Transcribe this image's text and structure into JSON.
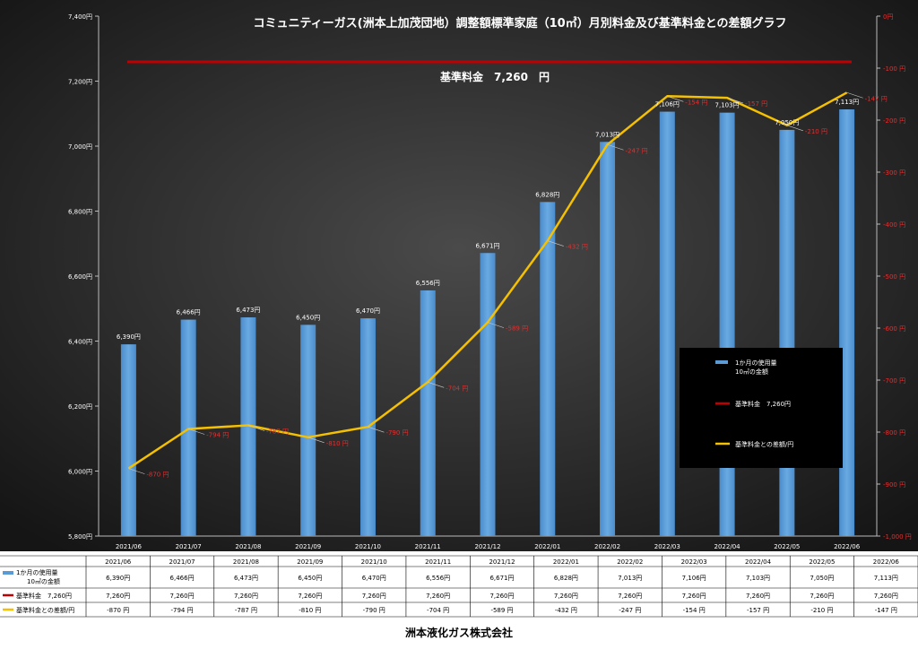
{
  "chart_data": {
    "type": "bar",
    "title": "コミュニティーガス(洲本上加茂団地）調整額標準家庭（10㎥）月別料金及び基準料金との差額グラフ",
    "baseline_label": "基準料金　7,260　円",
    "categories": [
      "2021/06",
      "2021/07",
      "2021/08",
      "2021/09",
      "2021/10",
      "2021/11",
      "2021/12",
      "2022/01",
      "2022/02",
      "2022/03",
      "2022/04",
      "2022/05",
      "2022/06"
    ],
    "series": [
      {
        "name": "1か月の使用量 10㎥の金額",
        "legend_lines": [
          "1か月の使用量",
          "10㎥の金額"
        ],
        "table_lines": [
          "1か月の使用量",
          "10㎥の金額"
        ],
        "type": "bar",
        "axis": "left",
        "color": "#5b9bd5",
        "values": [
          6390,
          6466,
          6473,
          6450,
          6470,
          6556,
          6671,
          6828,
          7013,
          7106,
          7103,
          7050,
          7113
        ],
        "labels": [
          "6,390円",
          "6,466円",
          "6,473円",
          "6,450円",
          "6,470円",
          "6,556円",
          "6,671円",
          "6,828円",
          "7,013円",
          "7,106円",
          "7,103円",
          "7,050円",
          "7,113円"
        ],
        "table_values": [
          "6,390円",
          "6,466円",
          "6,473円",
          "6,450円",
          "6,470円",
          "6,556円",
          "6,671円",
          "6,828円",
          "7,013円",
          "7,106円",
          "7,103円",
          "7,050円",
          "7,113円"
        ]
      },
      {
        "name": "基準料金　7,260円",
        "table_name": "基準料金　7,260円",
        "type": "line",
        "axis": "left",
        "color": "#c00000",
        "values": [
          7260,
          7260,
          7260,
          7260,
          7260,
          7260,
          7260,
          7260,
          7260,
          7260,
          7260,
          7260,
          7260
        ],
        "table_values": [
          "7,260円",
          "7,260円",
          "7,260円",
          "7,260円",
          "7,260円",
          "7,260円",
          "7,260円",
          "7,260円",
          "7,260円",
          "7,260円",
          "7,260円",
          "7,260円",
          "7,260円"
        ]
      },
      {
        "name": "基準料金との差額/円",
        "table_name": "基準料金との差額/円",
        "type": "line",
        "axis": "right",
        "color": "#f5c000",
        "values": [
          -870,
          -794,
          -787,
          -810,
          -790,
          -704,
          -589,
          -432,
          -247,
          -154,
          -157,
          -210,
          -147
        ],
        "labels": [
          "-870 円",
          "-794 円",
          "-787 円",
          "-810 円",
          "-790 円",
          "-704 円",
          "-589 円",
          "-432 円",
          "-247 円",
          "-154 円",
          "-157 円",
          "-210 円",
          "-147 円"
        ],
        "table_values": [
          "-870 円",
          "-794 円",
          "-787 円",
          "-810 円",
          "-790 円",
          "-704 円",
          "-589 円",
          "-432 円",
          "-247 円",
          "-154 円",
          "-157 円",
          "-210 円",
          "-147 円"
        ]
      }
    ],
    "y_left": {
      "ylim": [
        5800,
        7400
      ],
      "ticks": [
        5800,
        6000,
        6200,
        6400,
        6600,
        6800,
        7000,
        7200,
        7400
      ],
      "tick_labels": [
        "5,800円",
        "6,000円",
        "6,200円",
        "6,400円",
        "6,600円",
        "6,800円",
        "7,000円",
        "7,200円",
        "7,400円"
      ]
    },
    "y_right": {
      "ylim": [
        -1000,
        0
      ],
      "ticks": [
        0,
        -100,
        -200,
        -300,
        -400,
        -500,
        -600,
        -700,
        -800,
        -900,
        -1000
      ],
      "tick_labels": [
        "0円",
        "-100 円",
        "-200 円",
        "-300 円",
        "-400 円",
        "-500 円",
        "-600 円",
        "-700 円",
        "-800 円",
        "-900 円",
        "-1,000 円"
      ]
    },
    "grid": false,
    "legend_position": "lower-right"
  },
  "footer": {
    "company": "洲本液化ガス株式会社"
  },
  "colors": {
    "plot_bg": "#2b2b2b",
    "bar": "#5b9bd5",
    "baseline": "#c00000",
    "diff_line": "#f5c000",
    "diff_label": "#e03030",
    "text": "#ffffff"
  }
}
